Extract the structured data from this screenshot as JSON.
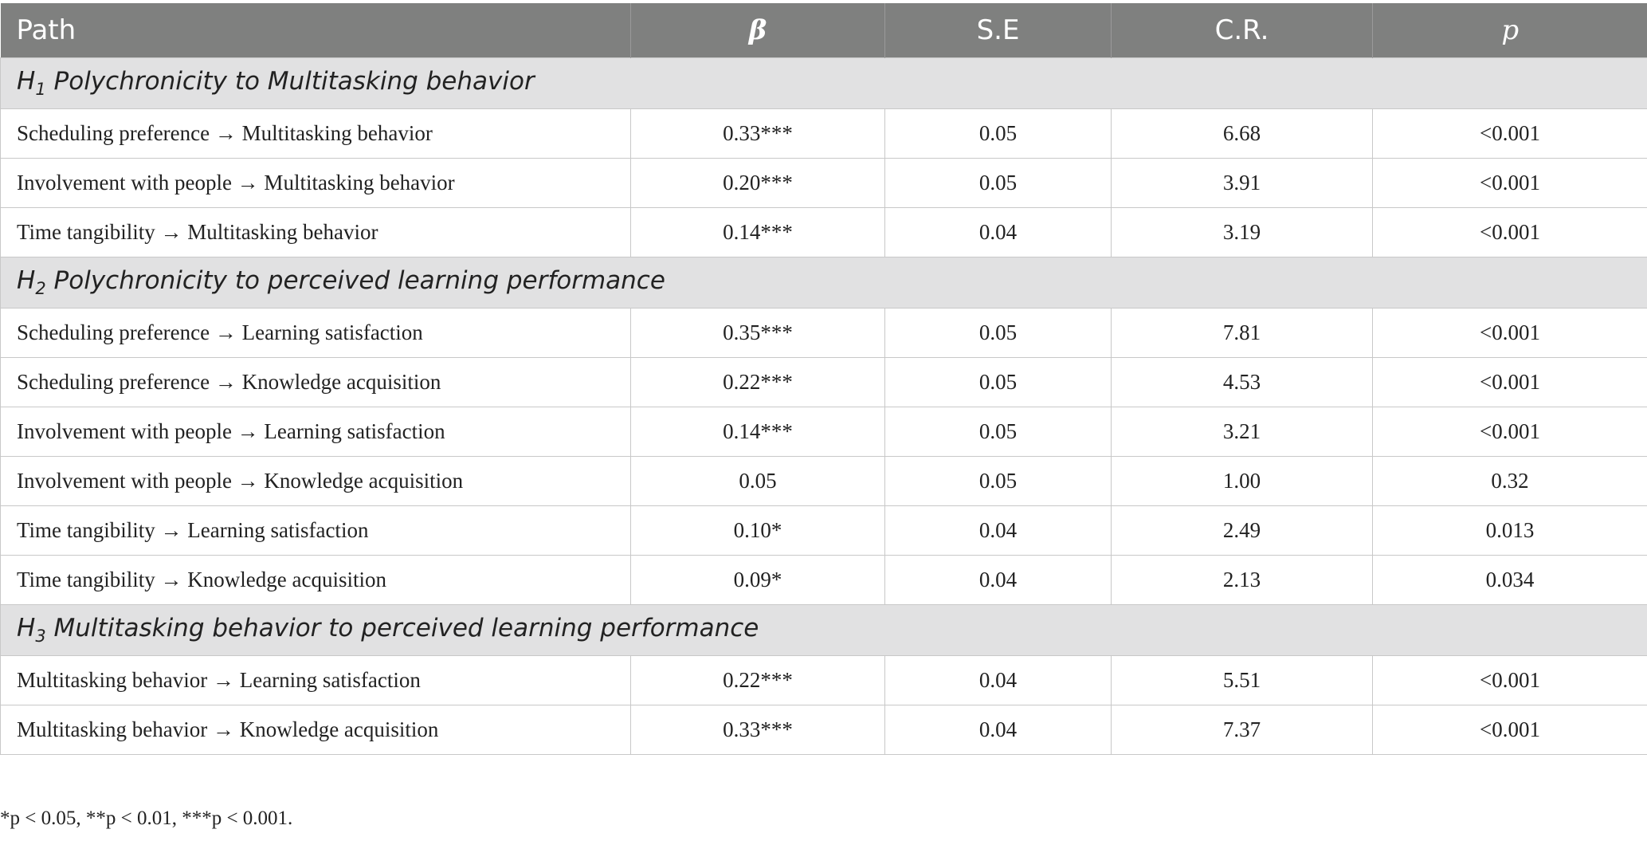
{
  "table": {
    "headers": {
      "path": "Path",
      "beta": "β",
      "se": "S.E",
      "cr": "C.R.",
      "p": "p"
    },
    "sections": [
      {
        "prefix": "H",
        "sub": "1",
        "title": " Polychronicity to Multitasking behavior",
        "rows": [
          {
            "path": "Scheduling preference → Multitasking behavior",
            "beta": "0.33***",
            "se": "0.05",
            "cr": "6.68",
            "p": "<0.001"
          },
          {
            "path": "Involvement with people → Multitasking behavior",
            "beta": "0.20***",
            "se": "0.05",
            "cr": "3.91",
            "p": "<0.001"
          },
          {
            "path": "Time tangibility → Multitasking behavior",
            "beta": "0.14***",
            "se": "0.04",
            "cr": "3.19",
            "p": "<0.001"
          }
        ]
      },
      {
        "prefix": "H",
        "sub": "2",
        "title": " Polychronicity to perceived learning performance",
        "rows": [
          {
            "path": "Scheduling preference → Learning satisfaction",
            "beta": "0.35***",
            "se": "0.05",
            "cr": "7.81",
            "p": "<0.001"
          },
          {
            "path": "Scheduling preference → Knowledge acquisition",
            "beta": "0.22***",
            "se": "0.05",
            "cr": "4.53",
            "p": "<0.001"
          },
          {
            "path": "Involvement with people → Learning satisfaction",
            "beta": "0.14***",
            "se": "0.05",
            "cr": "3.21",
            "p": "<0.001"
          },
          {
            "path": "Involvement with people → Knowledge acquisition",
            "beta": "0.05",
            "se": "0.05",
            "cr": "1.00",
            "p": "0.32"
          },
          {
            "path": "Time tangibility → Learning satisfaction",
            "beta": "0.10*",
            "se": "0.04",
            "cr": "2.49",
            "p": "0.013"
          },
          {
            "path": "Time tangibility → Knowledge acquisition",
            "beta": "0.09*",
            "se": "0.04",
            "cr": "2.13",
            "p": "0.034"
          }
        ]
      },
      {
        "prefix": "H",
        "sub": "3",
        "title": " Multitasking behavior to perceived learning performance",
        "rows": [
          {
            "path": "Multitasking behavior → Learning satisfaction",
            "beta": "0.22***",
            "se": "0.04",
            "cr": "5.51",
            "p": "<0.001"
          },
          {
            "path": "Multitasking behavior → Knowledge acquisition",
            "beta": "0.33***",
            "se": "0.04",
            "cr": "7.37",
            "p": "<0.001"
          }
        ]
      }
    ]
  },
  "footnote": "*p < 0.05, **p < 0.01, ***p < 0.001."
}
